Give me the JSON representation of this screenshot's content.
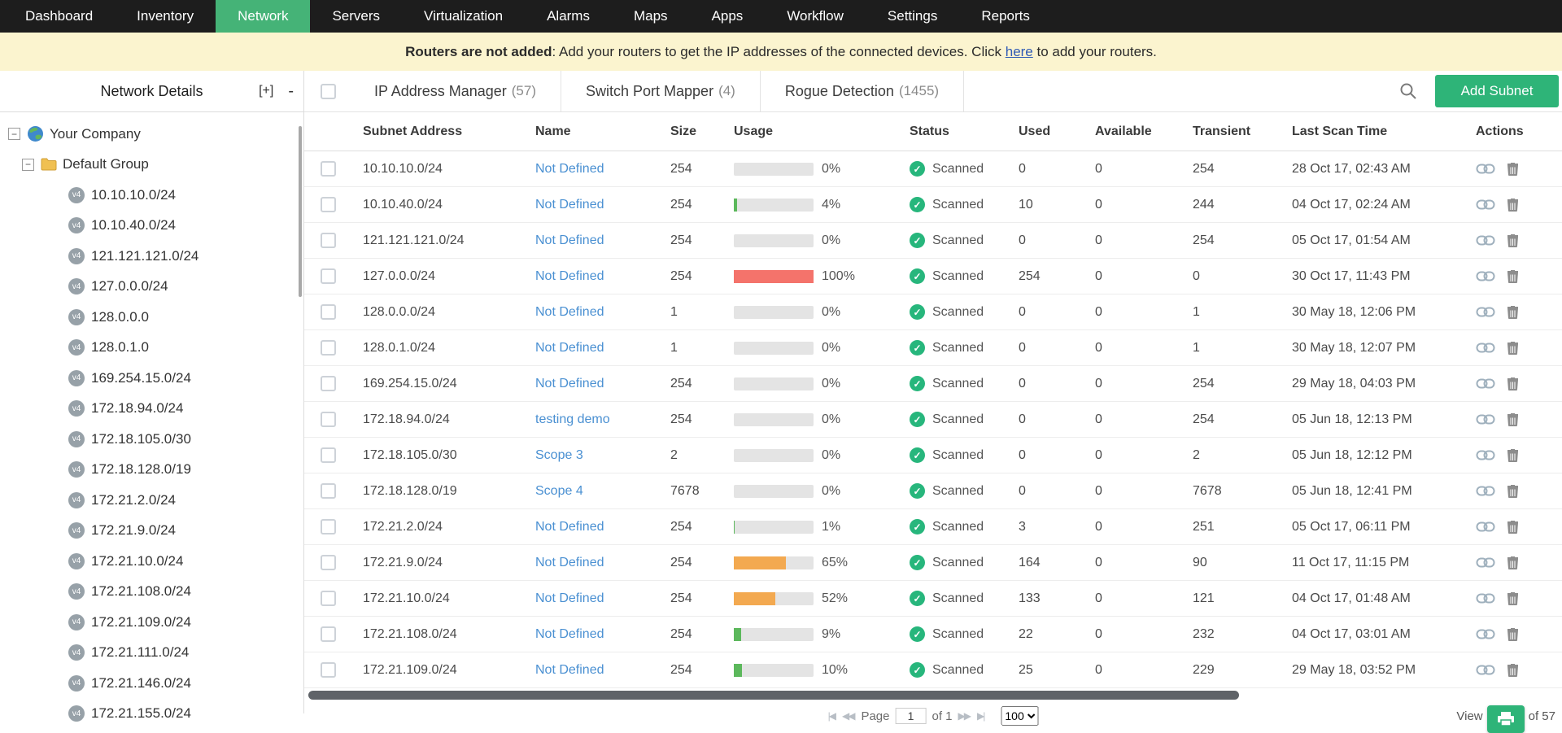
{
  "nav": {
    "items": [
      "Dashboard",
      "Inventory",
      "Network",
      "Servers",
      "Virtualization",
      "Alarms",
      "Maps",
      "Apps",
      "Workflow",
      "Settings",
      "Reports"
    ],
    "active": "Network"
  },
  "banner": {
    "bold_text": "Routers are not added",
    "message": ": Add your routers to get the IP addresses of the connected devices. Click ",
    "link_text": "here",
    "suffix": " to add your routers."
  },
  "sidebar": {
    "title": "Network Details",
    "expand_all": "[+]",
    "collapse_all": "-",
    "tree": {
      "root": "Your Company",
      "group": "Default Group",
      "badge": "v4",
      "subnets": [
        "10.10.10.0/24",
        "10.10.40.0/24",
        "121.121.121.0/24",
        "127.0.0.0/24",
        "128.0.0.0",
        "128.0.1.0",
        "169.254.15.0/24",
        "172.18.94.0/24",
        "172.18.105.0/30",
        "172.18.128.0/19",
        "172.21.2.0/24",
        "172.21.9.0/24",
        "172.21.10.0/24",
        "172.21.108.0/24",
        "172.21.109.0/24",
        "172.21.111.0/24",
        "172.21.146.0/24",
        "172.21.155.0/24"
      ]
    }
  },
  "toolbar": {
    "tabs": [
      {
        "label": "IP Address Manager",
        "count": "(57)"
      },
      {
        "label": "Switch Port Mapper",
        "count": "(4)"
      },
      {
        "label": "Rogue Detection",
        "count": "(1455)"
      }
    ],
    "add_button": "Add Subnet"
  },
  "table": {
    "columns": [
      "Subnet Address",
      "Name",
      "Size",
      "Usage",
      "Status",
      "Used",
      "Available",
      "Transient",
      "Last Scan Time",
      "Actions"
    ],
    "rows": [
      {
        "subnet": "10.10.10.0/24",
        "name": "Not Defined",
        "size": "254",
        "usage_pct": 0,
        "usage_label": "0%",
        "usage_level": "none",
        "status": "Scanned",
        "used": "0",
        "available": "0",
        "transient": "254",
        "last_scan": "28 Oct 17, 02:43 AM"
      },
      {
        "subnet": "10.10.40.0/24",
        "name": "Not Defined",
        "size": "254",
        "usage_pct": 4,
        "usage_label": "4%",
        "usage_level": "low",
        "status": "Scanned",
        "used": "10",
        "available": "0",
        "transient": "244",
        "last_scan": "04 Oct 17, 02:24 AM"
      },
      {
        "subnet": "121.121.121.0/24",
        "name": "Not Defined",
        "size": "254",
        "usage_pct": 0,
        "usage_label": "0%",
        "usage_level": "none",
        "status": "Scanned",
        "used": "0",
        "available": "0",
        "transient": "254",
        "last_scan": "05 Oct 17, 01:54 AM"
      },
      {
        "subnet": "127.0.0.0/24",
        "name": "Not Defined",
        "size": "254",
        "usage_pct": 100,
        "usage_label": "100%",
        "usage_level": "high",
        "status": "Scanned",
        "used": "254",
        "available": "0",
        "transient": "0",
        "last_scan": "30 Oct 17, 11:43 PM"
      },
      {
        "subnet": "128.0.0.0/24",
        "name": "Not Defined",
        "size": "1",
        "usage_pct": 0,
        "usage_label": "0%",
        "usage_level": "none",
        "status": "Scanned",
        "used": "0",
        "available": "0",
        "transient": "1",
        "last_scan": "30 May 18, 12:06 PM"
      },
      {
        "subnet": "128.0.1.0/24",
        "name": "Not Defined",
        "size": "1",
        "usage_pct": 0,
        "usage_label": "0%",
        "usage_level": "none",
        "status": "Scanned",
        "used": "0",
        "available": "0",
        "transient": "1",
        "last_scan": "30 May 18, 12:07 PM"
      },
      {
        "subnet": "169.254.15.0/24",
        "name": "Not Defined",
        "size": "254",
        "usage_pct": 0,
        "usage_label": "0%",
        "usage_level": "none",
        "status": "Scanned",
        "used": "0",
        "available": "0",
        "transient": "254",
        "last_scan": "29 May 18, 04:03 PM"
      },
      {
        "subnet": "172.18.94.0/24",
        "name": "testing demo",
        "size": "254",
        "usage_pct": 0,
        "usage_label": "0%",
        "usage_level": "none",
        "status": "Scanned",
        "used": "0",
        "available": "0",
        "transient": "254",
        "last_scan": "05 Jun 18, 12:13 PM"
      },
      {
        "subnet": "172.18.105.0/30",
        "name": "Scope 3",
        "size": "2",
        "usage_pct": 0,
        "usage_label": "0%",
        "usage_level": "none",
        "status": "Scanned",
        "used": "0",
        "available": "0",
        "transient": "2",
        "last_scan": "05 Jun 18, 12:12 PM"
      },
      {
        "subnet": "172.18.128.0/19",
        "name": "Scope 4",
        "size": "7678",
        "usage_pct": 0,
        "usage_label": "0%",
        "usage_level": "none",
        "status": "Scanned",
        "used": "0",
        "available": "0",
        "transient": "7678",
        "last_scan": "05 Jun 18, 12:41 PM"
      },
      {
        "subnet": "172.21.2.0/24",
        "name": "Not Defined",
        "size": "254",
        "usage_pct": 1,
        "usage_label": "1%",
        "usage_level": "low",
        "status": "Scanned",
        "used": "3",
        "available": "0",
        "transient": "251",
        "last_scan": "05 Oct 17, 06:11 PM"
      },
      {
        "subnet": "172.21.9.0/24",
        "name": "Not Defined",
        "size": "254",
        "usage_pct": 65,
        "usage_label": "65%",
        "usage_level": "mid",
        "status": "Scanned",
        "used": "164",
        "available": "0",
        "transient": "90",
        "last_scan": "11 Oct 17, 11:15 PM"
      },
      {
        "subnet": "172.21.10.0/24",
        "name": "Not Defined",
        "size": "254",
        "usage_pct": 52,
        "usage_label": "52%",
        "usage_level": "mid",
        "status": "Scanned",
        "used": "133",
        "available": "0",
        "transient": "121",
        "last_scan": "04 Oct 17, 01:48 AM"
      },
      {
        "subnet": "172.21.108.0/24",
        "name": "Not Defined",
        "size": "254",
        "usage_pct": 9,
        "usage_label": "9%",
        "usage_level": "low",
        "status": "Scanned",
        "used": "22",
        "available": "0",
        "transient": "232",
        "last_scan": "04 Oct 17, 03:01 AM"
      },
      {
        "subnet": "172.21.109.0/24",
        "name": "Not Defined",
        "size": "254",
        "usage_pct": 10,
        "usage_label": "10%",
        "usage_level": "low",
        "status": "Scanned",
        "used": "25",
        "available": "0",
        "transient": "229",
        "last_scan": "29 May 18, 03:52 PM"
      }
    ]
  },
  "pagination": {
    "page_label": "Page",
    "page_value": "1",
    "of_label": "of 1",
    "page_size": "100",
    "view_label": "View",
    "total_label": "of 57"
  },
  "icons": {
    "minus": "−",
    "check": "✓",
    "pager_first": "|◀",
    "pager_prev": "◀◀",
    "pager_next": "▶▶",
    "pager_last": "▶|"
  },
  "colors": {
    "nav_active": "#45b377",
    "accent_green": "#2eb478",
    "usage_low": "#5cb85c",
    "usage_mid": "#f3a950",
    "usage_high": "#f4736b",
    "link_blue": "#4a90d2"
  }
}
